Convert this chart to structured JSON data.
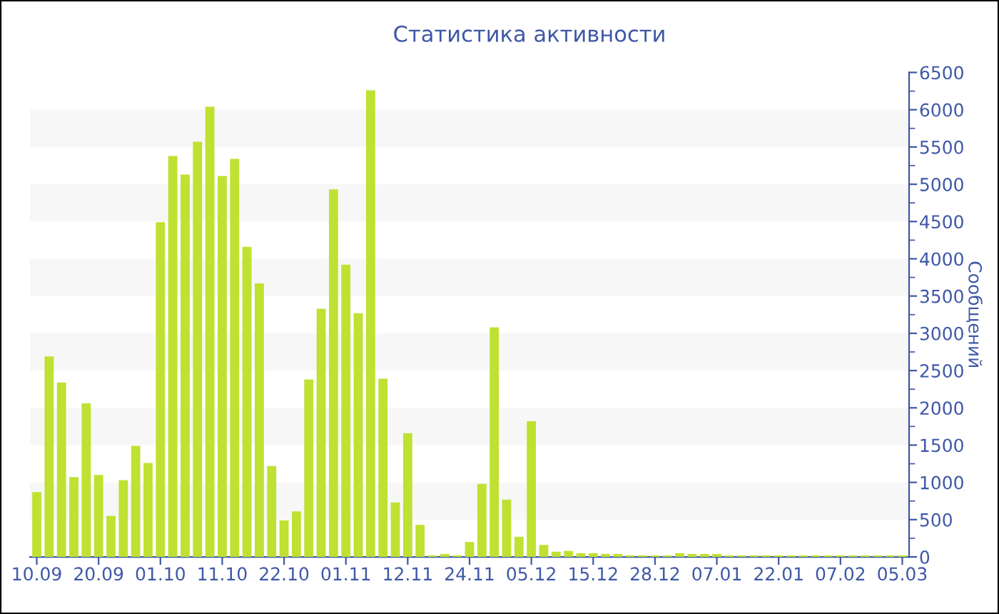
{
  "chart_data": {
    "type": "bar",
    "title": "Статистика активности",
    "ylabel": "Сообщений",
    "categories": [
      "10.09",
      null,
      null,
      null,
      null,
      "20.09",
      null,
      null,
      null,
      null,
      "01.10",
      null,
      null,
      null,
      null,
      "11.10",
      null,
      null,
      null,
      null,
      "22.10",
      null,
      null,
      null,
      null,
      "01.11",
      null,
      null,
      null,
      null,
      "12.11",
      null,
      null,
      null,
      null,
      "24.11",
      null,
      null,
      null,
      null,
      "05.12",
      null,
      null,
      null,
      null,
      "15.12",
      null,
      null,
      null,
      null,
      "28.12",
      null,
      null,
      null,
      null,
      "07.01",
      null,
      null,
      null,
      null,
      "22.01",
      null,
      null,
      null,
      null,
      "07.02",
      null,
      null,
      null,
      null,
      "05.03"
    ],
    "values": [
      870,
      2690,
      2340,
      1070,
      2060,
      1100,
      550,
      1030,
      1490,
      1260,
      4490,
      5380,
      5130,
      5570,
      6040,
      5110,
      5340,
      4160,
      3670,
      1220,
      490,
      610,
      2380,
      3330,
      4930,
      3920,
      3270,
      6260,
      2390,
      730,
      1660,
      430,
      20,
      40,
      20,
      200,
      980,
      3080,
      770,
      270,
      1820,
      160,
      70,
      80,
      50,
      50,
      40,
      40,
      20,
      20,
      20,
      20,
      50,
      40,
      40,
      40,
      20,
      20,
      20,
      20,
      20,
      20,
      20,
      20,
      20,
      20,
      20,
      20,
      20,
      20,
      20
    ],
    "color": "#bfe132",
    "ylim": [
      0,
      6500
    ],
    "yticks": [
      0,
      500,
      1000,
      1500,
      2000,
      2500,
      3000,
      3500,
      4000,
      4500,
      5000,
      5500,
      6000,
      6500
    ],
    "bands": [
      {
        "axis": "y",
        "from": 500,
        "to": 1000,
        "color": "#f7f7f7"
      },
      {
        "axis": "y",
        "from": 1500,
        "to": 2000,
        "color": "#f7f7f7"
      },
      {
        "axis": "y",
        "from": 2500,
        "to": 3000,
        "color": "#f7f7f7"
      },
      {
        "axis": "y",
        "from": 3500,
        "to": 4000,
        "color": "#f7f7f7"
      },
      {
        "axis": "y",
        "from": 4500,
        "to": 5000,
        "color": "#f7f7f7"
      },
      {
        "axis": "y",
        "from": 5500,
        "to": 6000,
        "color": "#f7f7f7"
      }
    ]
  }
}
